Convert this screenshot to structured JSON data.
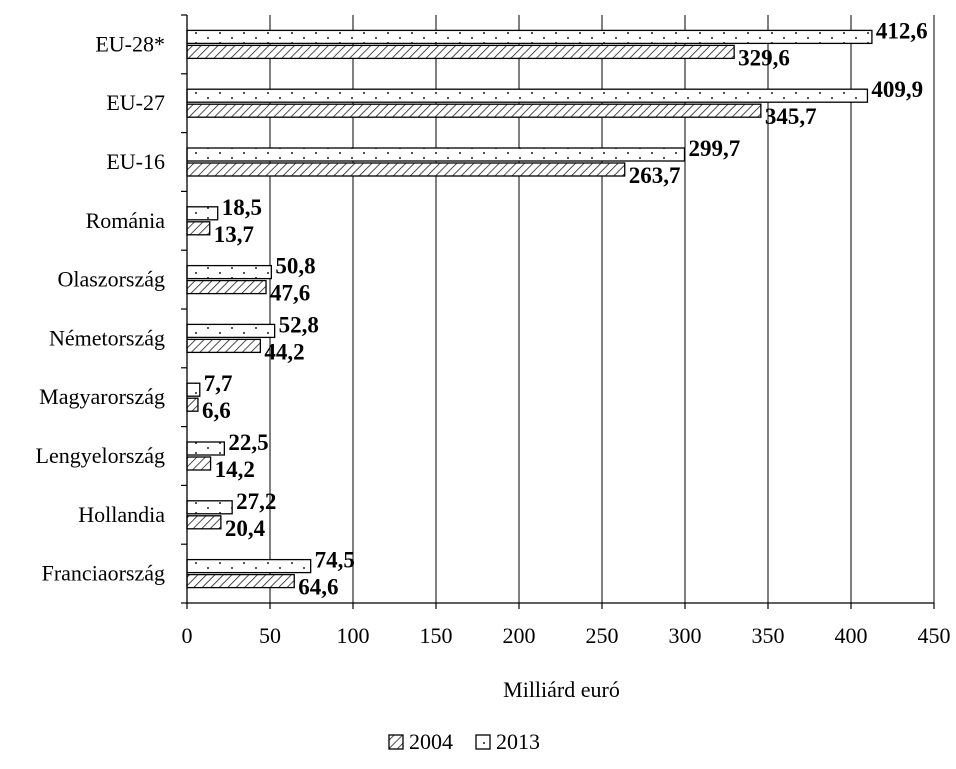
{
  "chart_data": {
    "type": "bar",
    "orientation": "horizontal",
    "categories": [
      "EU-28*",
      "EU-27",
      "EU-16",
      "Románia",
      "Olaszország",
      "Németország",
      "Magyarország",
      "Lengyelország",
      "Hollandia",
      "Franciaország"
    ],
    "series": [
      {
        "name": "2013",
        "values": [
          412.6,
          409.9,
          299.7,
          18.5,
          50.8,
          52.8,
          7.7,
          22.5,
          27.2,
          74.5
        ],
        "labels": [
          "412,6",
          "409,9",
          "299,7",
          "18,5",
          "50,8",
          "52,8",
          "7,7",
          "22,5",
          "27,2",
          "74,5"
        ],
        "pattern": "dotted"
      },
      {
        "name": "2004",
        "values": [
          329.6,
          345.7,
          263.7,
          13.7,
          47.6,
          44.2,
          6.6,
          14.2,
          20.4,
          64.6
        ],
        "labels": [
          "329,6",
          "345,7",
          "263,7",
          "13,7",
          "47,6",
          "44,2",
          "6,6",
          "14,2",
          "20,4",
          "64,6"
        ],
        "pattern": "hatched"
      }
    ],
    "xlabel": "Milliárd euró",
    "ylabel": "",
    "xlim": [
      0,
      450
    ],
    "xticks": [
      0,
      50,
      100,
      150,
      200,
      250,
      300,
      350,
      400,
      450
    ],
    "grid": "vertical",
    "legend_position": "bottom-center",
    "legend": [
      {
        "name": "2004",
        "pattern": "hatched"
      },
      {
        "name": "2013",
        "pattern": "dotted"
      }
    ]
  }
}
